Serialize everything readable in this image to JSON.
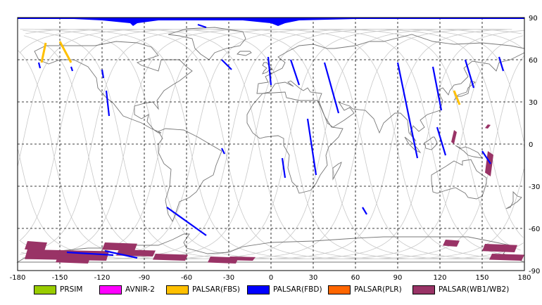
{
  "map": {
    "lon_range": [
      -180,
      180
    ],
    "lat_range": [
      -90,
      90
    ],
    "x_ticks": [
      -180,
      -150,
      -120,
      -90,
      -60,
      -30,
      0,
      30,
      60,
      90,
      120,
      150,
      180
    ],
    "y_ticks": [
      90,
      60,
      30,
      0,
      -30,
      -60,
      -90
    ],
    "grid": "dashed"
  },
  "legend": [
    {
      "label": "PRSIM",
      "color": "#99cc00"
    },
    {
      "label": "AVNIR-2",
      "color": "#ff00ff"
    },
    {
      "label": "PALSAR(FBS)",
      "color": "#ffc000"
    },
    {
      "label": "PALSAR(FBD)",
      "color": "#0000ff"
    },
    {
      "label": "PALSAR(PLR)",
      "color": "#ff6600"
    },
    {
      "label": "PALSAR(WB1/WB2)",
      "color": "#993366"
    }
  ],
  "acquisitions": {
    "fbd_strips": [
      [
        [
          -165,
          58
        ],
        [
          -164,
          54
        ]
      ],
      [
        [
          -142,
          55
        ],
        [
          -141,
          52
        ]
      ],
      [
        [
          -120,
          53
        ],
        [
          -119,
          47
        ]
      ],
      [
        [
          -117,
          38
        ],
        [
          -115,
          20
        ]
      ],
      [
        [
          -35,
          60
        ],
        [
          -28,
          53
        ]
      ],
      [
        [
          -52,
          85
        ],
        [
          -46,
          83
        ]
      ],
      [
        [
          -74,
          -45
        ],
        [
          -46,
          -65
        ]
      ],
      [
        [
          -2,
          62
        ],
        [
          0,
          42
        ]
      ],
      [
        [
          14,
          60
        ],
        [
          20,
          42
        ]
      ],
      [
        [
          38,
          58
        ],
        [
          48,
          22
        ]
      ],
      [
        [
          26,
          18
        ],
        [
          32,
          -22
        ]
      ],
      [
        [
          8,
          -10
        ],
        [
          10,
          -24
        ]
      ],
      [
        [
          -35,
          -3
        ],
        [
          -33,
          -7
        ]
      ],
      [
        [
          90,
          58
        ],
        [
          104,
          -10
        ]
      ],
      [
        [
          115,
          55
        ],
        [
          121,
          24
        ]
      ],
      [
        [
          138,
          60
        ],
        [
          144,
          40
        ]
      ],
      [
        [
          162,
          62
        ],
        [
          165,
          52
        ]
      ],
      [
        [
          150,
          -5
        ],
        [
          156,
          -14
        ]
      ],
      [
        [
          118,
          12
        ],
        [
          124,
          -8
        ]
      ],
      [
        [
          65,
          -45
        ],
        [
          68,
          -50
        ]
      ],
      [
        [
          -145,
          -77
        ],
        [
          -112,
          -79
        ]
      ],
      [
        [
          -118,
          -76
        ],
        [
          -95,
          -81
        ]
      ]
    ],
    "fbs_strips": [
      [
        [
          -160,
          72
        ],
        [
          -163,
          58
        ]
      ],
      [
        [
          -150,
          73
        ],
        [
          -142,
          58
        ]
      ],
      [
        [
          130,
          38
        ],
        [
          134,
          28
        ]
      ]
    ],
    "wb_boxes": [
      [
        -175,
        -69,
        16,
        7
      ],
      [
        -175,
        -75,
        60,
        8
      ],
      [
        -153,
        -79,
        25,
        6
      ],
      [
        -120,
        -70,
        25,
        6
      ],
      [
        -110,
        -75,
        28,
        5
      ],
      [
        -84,
        -78,
        25,
        5
      ],
      [
        -45,
        -80,
        22,
        5
      ],
      [
        -31,
        -80,
        20,
        3
      ],
      [
        122,
        -68,
        12,
        5
      ],
      [
        150,
        -71,
        25,
        6
      ],
      [
        155,
        -78,
        25,
        5
      ],
      [
        128,
        10,
        4,
        10
      ],
      [
        152,
        -5,
        6,
        18
      ],
      [
        152,
        14,
        4,
        3
      ]
    ],
    "polar_edge": [
      [
        -180,
        89
      ],
      [
        -140,
        89
      ],
      [
        -120,
        88
      ],
      [
        -100,
        86
      ],
      [
        -98,
        84
      ],
      [
        -95,
        86
      ],
      [
        -80,
        88
      ],
      [
        -20,
        88
      ],
      [
        0,
        86
      ],
      [
        5,
        84
      ],
      [
        10,
        86
      ],
      [
        20,
        88
      ],
      [
        60,
        89
      ],
      [
        180,
        89
      ]
    ]
  }
}
